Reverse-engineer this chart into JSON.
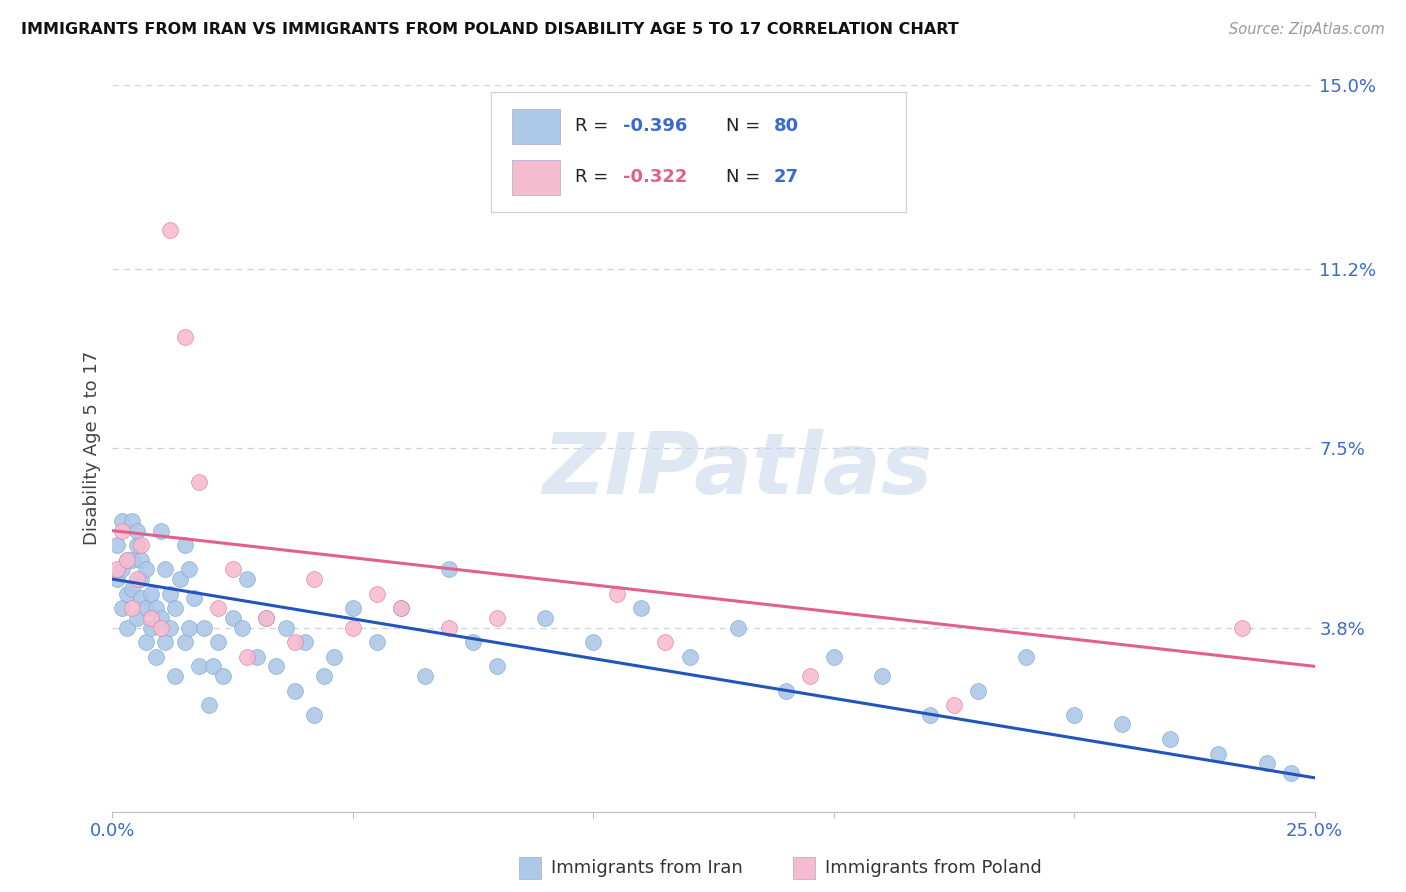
{
  "title": "IMMIGRANTS FROM IRAN VS IMMIGRANTS FROM POLAND DISABILITY AGE 5 TO 17 CORRELATION CHART",
  "source": "Source: ZipAtlas.com",
  "ylabel": "Disability Age 5 to 17",
  "xlim": [
    0.0,
    0.25
  ],
  "ylim": [
    0.0,
    0.15
  ],
  "iran_color": "#aec8e8",
  "iran_edge_color": "#7aaad4",
  "poland_color": "#f5bcd0",
  "poland_edge_color": "#e080a8",
  "trendline_iran_color": "#2255bb",
  "trendline_poland_color": "#e06090",
  "iran_R": -0.396,
  "iran_N": 80,
  "poland_R": -0.322,
  "poland_N": 27,
  "watermark_text": "ZIPatlas",
  "background_color": "#ffffff",
  "grid_color": "#d0d0e0",
  "ytick_vals": [
    0.0,
    0.038,
    0.075,
    0.112,
    0.15
  ],
  "ytick_labels": [
    "",
    "3.8%",
    "7.5%",
    "11.2%",
    "15.0%"
  ],
  "xtick_vals": [
    0.0,
    0.05,
    0.1,
    0.15,
    0.2,
    0.25
  ],
  "xtick_labels": [
    "0.0%",
    "",
    "",
    "",
    "",
    "25.0%"
  ],
  "legend_label1": "R = -0.396   N = 80",
  "legend_label2": "R = -0.322   N = 27",
  "bottom_legend1": "Immigrants from Iran",
  "bottom_legend2": "Immigrants from Poland",
  "iran_trendline_start_y": 0.048,
  "iran_trendline_end_y": 0.007,
  "poland_trendline_start_y": 0.058,
  "poland_trendline_end_y": 0.03,
  "iran_x": [
    0.001,
    0.001,
    0.002,
    0.002,
    0.002,
    0.003,
    0.003,
    0.003,
    0.004,
    0.004,
    0.004,
    0.005,
    0.005,
    0.005,
    0.006,
    0.006,
    0.006,
    0.007,
    0.007,
    0.007,
    0.008,
    0.008,
    0.009,
    0.009,
    0.01,
    0.01,
    0.011,
    0.011,
    0.012,
    0.012,
    0.013,
    0.013,
    0.014,
    0.015,
    0.015,
    0.016,
    0.016,
    0.017,
    0.018,
    0.019,
    0.02,
    0.021,
    0.022,
    0.023,
    0.025,
    0.027,
    0.028,
    0.03,
    0.032,
    0.034,
    0.036,
    0.038,
    0.04,
    0.042,
    0.044,
    0.046,
    0.05,
    0.055,
    0.06,
    0.065,
    0.07,
    0.075,
    0.08,
    0.09,
    0.1,
    0.11,
    0.12,
    0.13,
    0.14,
    0.15,
    0.16,
    0.17,
    0.18,
    0.19,
    0.2,
    0.21,
    0.22,
    0.23,
    0.24,
    0.245
  ],
  "iran_y": [
    0.055,
    0.048,
    0.06,
    0.042,
    0.05,
    0.052,
    0.038,
    0.045,
    0.06,
    0.046,
    0.052,
    0.04,
    0.055,
    0.058,
    0.044,
    0.048,
    0.052,
    0.035,
    0.042,
    0.05,
    0.038,
    0.045,
    0.032,
    0.042,
    0.058,
    0.04,
    0.05,
    0.035,
    0.038,
    0.045,
    0.028,
    0.042,
    0.048,
    0.055,
    0.035,
    0.05,
    0.038,
    0.044,
    0.03,
    0.038,
    0.022,
    0.03,
    0.035,
    0.028,
    0.04,
    0.038,
    0.048,
    0.032,
    0.04,
    0.03,
    0.038,
    0.025,
    0.035,
    0.02,
    0.028,
    0.032,
    0.042,
    0.035,
    0.042,
    0.028,
    0.05,
    0.035,
    0.03,
    0.04,
    0.035,
    0.042,
    0.032,
    0.038,
    0.025,
    0.032,
    0.028,
    0.02,
    0.025,
    0.032,
    0.02,
    0.018,
    0.015,
    0.012,
    0.01,
    0.008
  ],
  "poland_x": [
    0.001,
    0.002,
    0.003,
    0.004,
    0.005,
    0.006,
    0.008,
    0.01,
    0.012,
    0.015,
    0.018,
    0.022,
    0.025,
    0.028,
    0.032,
    0.038,
    0.042,
    0.05,
    0.055,
    0.06,
    0.07,
    0.08,
    0.105,
    0.115,
    0.145,
    0.175,
    0.235
  ],
  "poland_y": [
    0.05,
    0.058,
    0.052,
    0.042,
    0.048,
    0.055,
    0.04,
    0.038,
    0.12,
    0.098,
    0.068,
    0.042,
    0.05,
    0.032,
    0.04,
    0.035,
    0.048,
    0.038,
    0.045,
    0.042,
    0.038,
    0.04,
    0.045,
    0.035,
    0.028,
    0.022,
    0.038
  ]
}
